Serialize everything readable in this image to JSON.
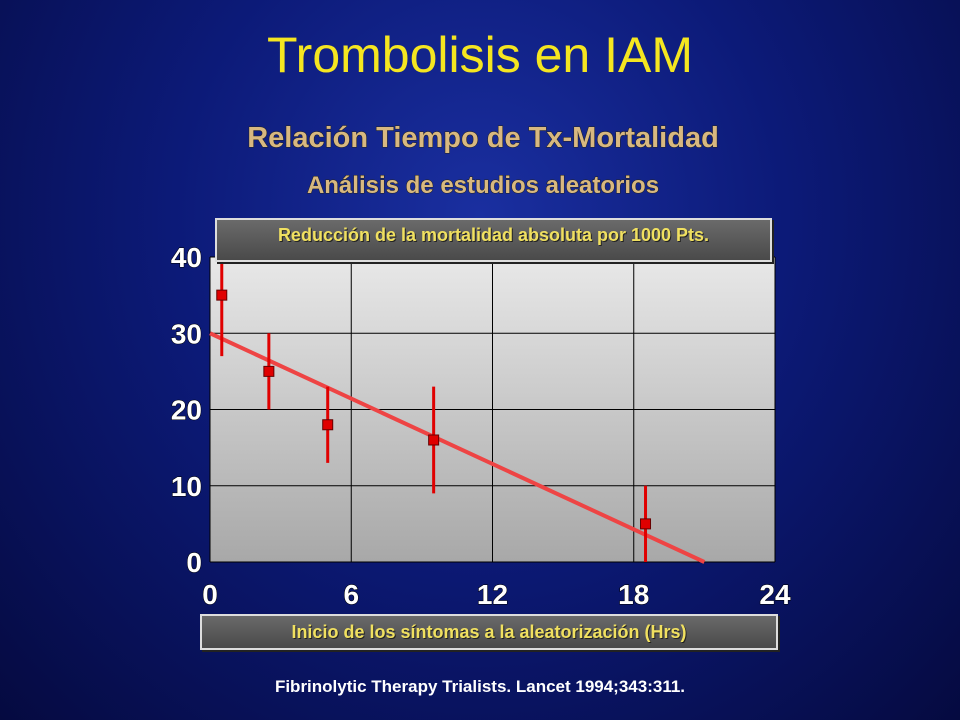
{
  "title": "Trombolisis en IAM",
  "subtitle": "Relación Tiempo de Tx-Mortalidad",
  "subtitle2": "Análisis de estudios aleatorios",
  "source": "Fibrinolytic Therapy Trialists.  Lancet 1994;343:311.",
  "chart_data": {
    "type": "scatter",
    "y_label": "Reducción de la mortalidad absoluta por 1000 Pts.",
    "x_label": "Inicio de los síntomas a la aleatorización (Hrs)",
    "xlim": [
      0,
      24
    ],
    "xticks": [
      0,
      6,
      12,
      18,
      24
    ],
    "ylim": [
      0,
      40
    ],
    "yticks": [
      0,
      10,
      20,
      30,
      40
    ],
    "grid": true,
    "series": [
      {
        "color": "#e00000",
        "x": [
          0.5,
          2.5,
          5,
          9.5,
          18.5
        ],
        "values": [
          35,
          25,
          18,
          16,
          5
        ],
        "errors": [
          8,
          5,
          5,
          7,
          5
        ]
      }
    ],
    "trend_line": {
      "color": "#ee4444",
      "x": [
        0,
        21
      ],
      "values": [
        30,
        0
      ]
    }
  }
}
